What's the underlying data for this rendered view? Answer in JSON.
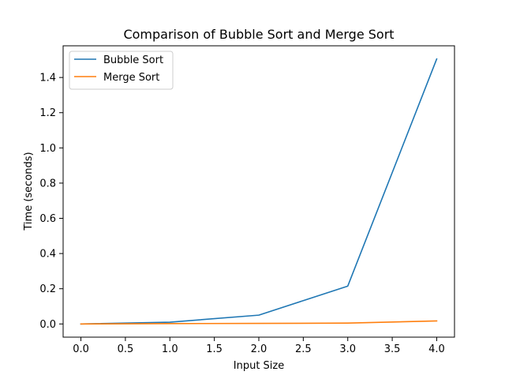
{
  "chart_data": {
    "type": "line",
    "title": "Comparison of Bubble Sort and Merge Sort",
    "xlabel": "Input Size",
    "ylabel": "Time (seconds)",
    "x": [
      0,
      1,
      2,
      3,
      4
    ],
    "series": [
      {
        "name": "Bubble Sort",
        "color": "#1f77b4",
        "values": [
          0.0,
          0.01,
          0.05,
          0.215,
          1.505
        ]
      },
      {
        "name": "Merge Sort",
        "color": "#ff7f0e",
        "values": [
          0.0,
          0.002,
          0.003,
          0.005,
          0.017
        ]
      }
    ],
    "xlim": [
      -0.2,
      4.2
    ],
    "ylim": [
      -0.075,
      1.58
    ],
    "xticks": [
      0.0,
      0.5,
      1.0,
      1.5,
      2.0,
      2.5,
      3.0,
      3.5,
      4.0
    ],
    "xtick_labels": [
      "0.0",
      "0.5",
      "1.0",
      "1.5",
      "2.0",
      "2.5",
      "3.0",
      "3.5",
      "4.0"
    ],
    "yticks": [
      0.0,
      0.2,
      0.4,
      0.6,
      0.8,
      1.0,
      1.2,
      1.4
    ],
    "ytick_labels": [
      "0.0",
      "0.2",
      "0.4",
      "0.6",
      "0.8",
      "1.0",
      "1.2",
      "1.4"
    ],
    "grid": false,
    "legend": "top-left"
  }
}
